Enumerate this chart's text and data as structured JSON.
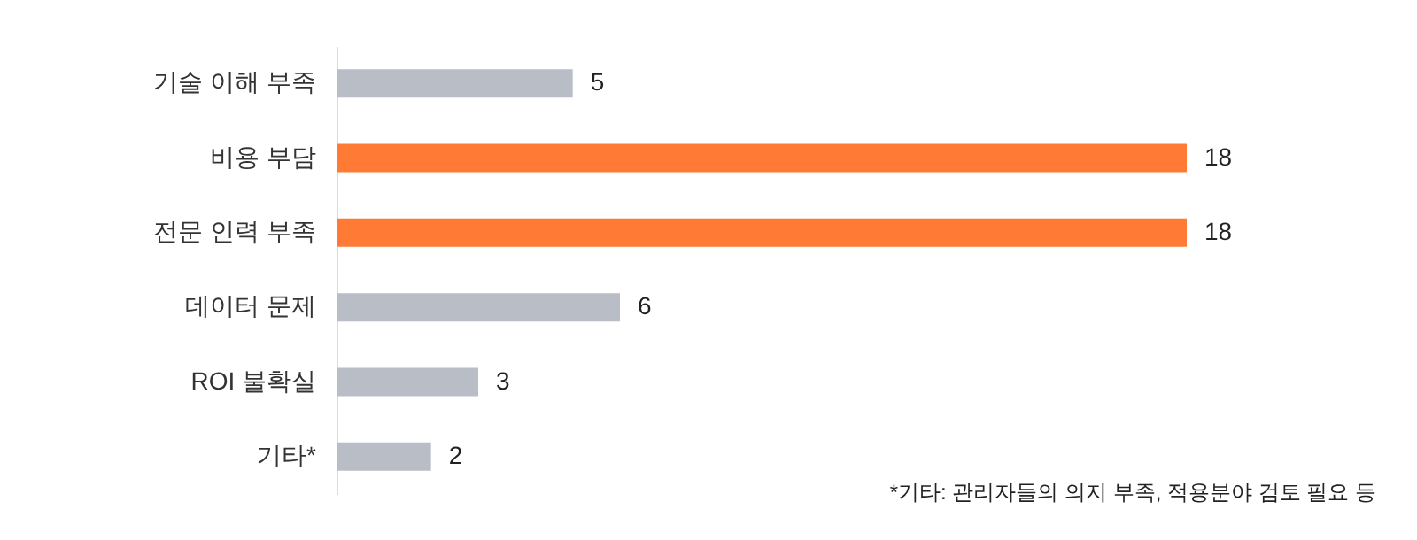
{
  "chart_data": {
    "type": "bar",
    "orientation": "horizontal",
    "data_labels": true,
    "categories": [
      "기술 이해 부족",
      "비용 부담",
      "전문 인력 부족",
      "데이터 문제",
      "ROI 불확실",
      "기타*"
    ],
    "values": [
      5,
      18,
      18,
      6,
      3,
      2
    ],
    "colors": [
      "#b9bdc6",
      "#ff7b35",
      "#ff7b35",
      "#b9bdc6",
      "#b9bdc6",
      "#b9bdc6"
    ],
    "annotations": [
      "*기타: 관리자들의 의지 부족, 적용분야 검토 필요 등"
    ]
  }
}
